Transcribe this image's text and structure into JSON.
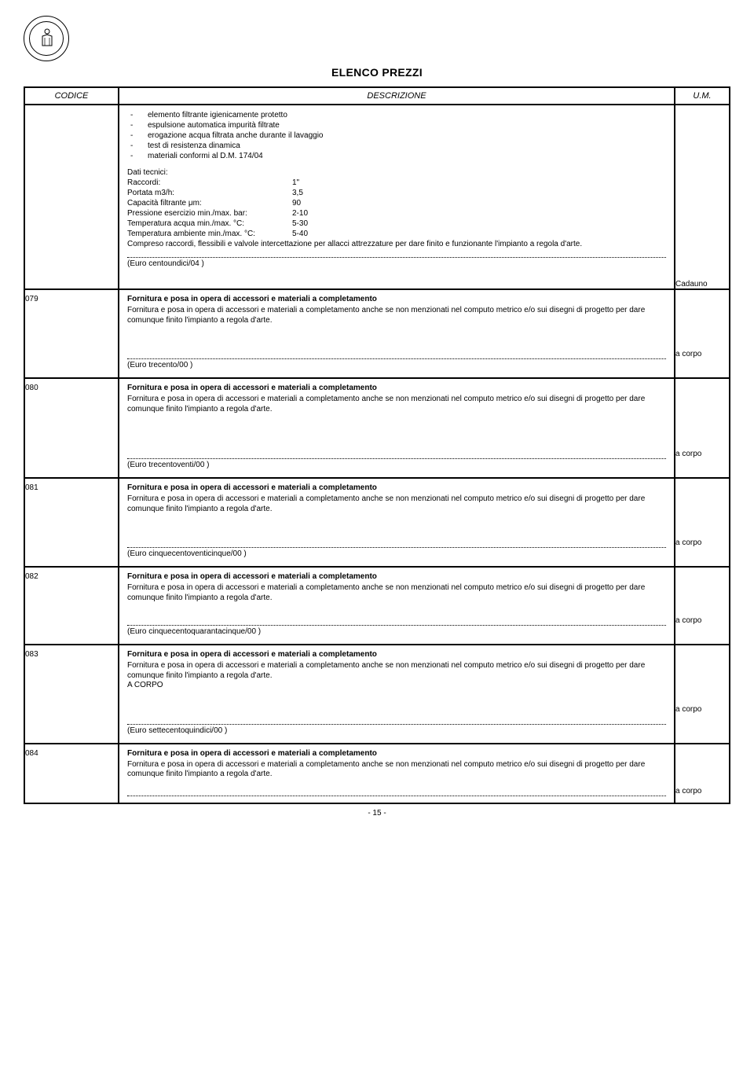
{
  "page": {
    "title": "ELENCO PREZZI",
    "number": "- 15 -"
  },
  "headers": {
    "code": "CODICE",
    "desc": "DESCRIZIONE",
    "um": "U.M."
  },
  "first_block": {
    "bullets": [
      "elemento filtrante igienicamente protetto",
      "espulsione automatica impurità filtrate",
      "erogazione acqua filtrata anche durante il lavaggio",
      "test di resistenza dinamica",
      "materiali conformi al D.M. 174/04"
    ],
    "tech_label": "Dati tecnici:",
    "tech": [
      {
        "k": "Raccordi:",
        "v": "1\""
      },
      {
        "k": "Portata m3/h:",
        "v": "3,5"
      },
      {
        "k": "Capacità filtrante μm:",
        "v": "90"
      },
      {
        "k": "Pressione esercizio min./max. bar:",
        "v": "2-10"
      },
      {
        "k": "Temperatura acqua min./max. °C:",
        "v": "5-30"
      },
      {
        "k": "Temperatura ambiente min./max. °C:",
        "v": "5-40"
      }
    ],
    "note": "Compreso raccordi, flessibili e valvole intercettazione per allacci attrezzature per dare finito e funzionante l'impianto a regola d'arte.",
    "euro": "(Euro centoundici/04 )",
    "um": "Cadauno"
  },
  "generic_title": "Fornitura e posa in opera di accessori e materiali a completamento",
  "generic_body": "Fornitura e posa in opera di accessori e materiali a completamento anche se non menzionati nel computo metrico e/o sui disegni di progetto per dare comunque finito l'impianto a regola d'arte.",
  "items": [
    {
      "code": "079",
      "euro": "(Euro trecento/00 )",
      "um": "a corpo",
      "extra": "",
      "spacer": "lg"
    },
    {
      "code": "080",
      "euro": "(Euro trecentoventi/00 )",
      "um": "a corpo",
      "extra": "",
      "spacer": "xl"
    },
    {
      "code": "081",
      "euro": "(Euro cinquecentoventicinque/00 )",
      "um": "a corpo",
      "extra": "",
      "spacer": "lg"
    },
    {
      "code": "082",
      "euro": "(Euro cinquecentoquarantacinque/00 )",
      "um": "a corpo",
      "extra": "",
      "spacer": "md"
    },
    {
      "code": "083",
      "euro": "(Euro settecentoquindici/00 )",
      "um": "a corpo",
      "extra": "A CORPO",
      "spacer": "lg"
    },
    {
      "code": "084",
      "euro": "",
      "um": "a corpo",
      "extra": "",
      "spacer": "sm",
      "no_euro": true
    }
  ]
}
